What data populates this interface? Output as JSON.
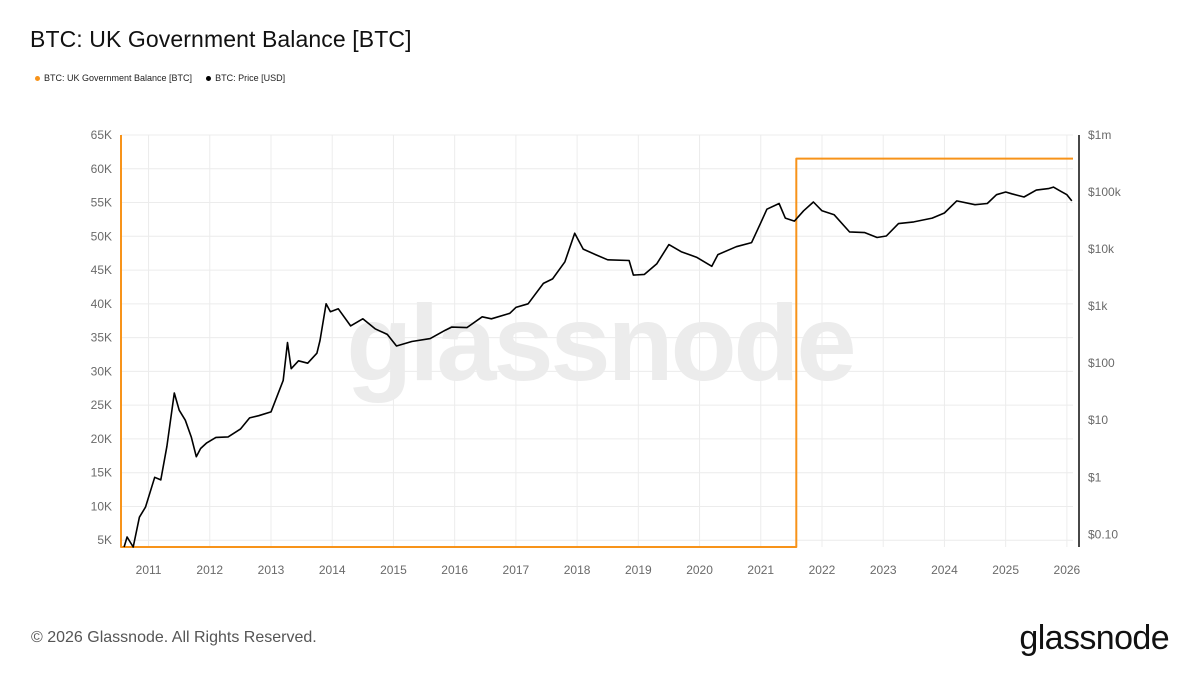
{
  "header": {
    "title": "BTC: UK Government Balance [BTC]"
  },
  "legend": [
    {
      "label": "BTC: UK Government Balance [BTC]",
      "color": "#f7931a"
    },
    {
      "label": "BTC: Price [USD]",
      "color": "#000000"
    }
  ],
  "footer": {
    "copyright": "© 2026 Glassnode. All Rights Reserved.",
    "brand": "glassnode"
  },
  "watermark": "glassnode",
  "chart_data": {
    "type": "line",
    "title": "BTC: UK Government Balance [BTC]",
    "x_ticks": [
      "2011",
      "2012",
      "2013",
      "2014",
      "2015",
      "2016",
      "2017",
      "2018",
      "2019",
      "2020",
      "2021",
      "2022",
      "2023",
      "2024",
      "2025",
      "2026"
    ],
    "x_range": [
      2010.55,
      2026.1
    ],
    "left_axis": {
      "ticks": [
        "5K",
        "10K",
        "15K",
        "20K",
        "25K",
        "30K",
        "35K",
        "40K",
        "45K",
        "50K",
        "55K",
        "60K",
        "65K"
      ],
      "tick_values": [
        5000,
        10000,
        15000,
        20000,
        25000,
        30000,
        35000,
        40000,
        45000,
        50000,
        55000,
        60000,
        65000
      ],
      "ylim": [
        4000,
        65000
      ]
    },
    "right_axis": {
      "scale": "log",
      "ticks": [
        "$0.10",
        "$1",
        "$10",
        "$100",
        "$1k",
        "$10k",
        "$100k",
        "$1m"
      ],
      "tick_values": [
        0.1,
        1,
        10,
        100,
        1000,
        10000,
        100000,
        1000000
      ],
      "ylim": [
        0.06,
        1000000
      ]
    },
    "grid": true,
    "series": [
      {
        "name": "BTC: UK Government Balance [BTC]",
        "axis": "left",
        "color": "#f7931a",
        "points": [
          [
            2010.55,
            65000
          ],
          [
            2010.55,
            4000
          ],
          [
            2021.58,
            4000
          ],
          [
            2021.58,
            6000
          ],
          [
            2021.58,
            61500
          ],
          [
            2026.1,
            61500
          ]
        ]
      },
      {
        "name": "BTC: Price [USD]",
        "axis": "right",
        "color": "#000000",
        "points": [
          [
            2010.6,
            0.06
          ],
          [
            2010.65,
            0.09
          ],
          [
            2010.75,
            0.06
          ],
          [
            2010.85,
            0.2
          ],
          [
            2010.95,
            0.3
          ],
          [
            2011.1,
            1.0
          ],
          [
            2011.2,
            0.9
          ],
          [
            2011.3,
            3.5
          ],
          [
            2011.42,
            30
          ],
          [
            2011.5,
            15
          ],
          [
            2011.6,
            10
          ],
          [
            2011.7,
            5
          ],
          [
            2011.78,
            2.3
          ],
          [
            2011.85,
            3.2
          ],
          [
            2011.95,
            4.0
          ],
          [
            2012.1,
            5.0
          ],
          [
            2012.3,
            5.1
          ],
          [
            2012.5,
            7.0
          ],
          [
            2012.65,
            11
          ],
          [
            2012.8,
            12
          ],
          [
            2013.0,
            14
          ],
          [
            2013.2,
            50
          ],
          [
            2013.27,
            230
          ],
          [
            2013.33,
            80
          ],
          [
            2013.45,
            110
          ],
          [
            2013.6,
            100
          ],
          [
            2013.75,
            150
          ],
          [
            2013.8,
            250
          ],
          [
            2013.9,
            1100
          ],
          [
            2013.97,
            800
          ],
          [
            2014.1,
            900
          ],
          [
            2014.3,
            450
          ],
          [
            2014.5,
            600
          ],
          [
            2014.7,
            400
          ],
          [
            2014.9,
            320
          ],
          [
            2015.05,
            200
          ],
          [
            2015.3,
            240
          ],
          [
            2015.6,
            270
          ],
          [
            2015.85,
            380
          ],
          [
            2015.95,
            430
          ],
          [
            2016.2,
            420
          ],
          [
            2016.45,
            650
          ],
          [
            2016.6,
            600
          ],
          [
            2016.9,
            750
          ],
          [
            2017.0,
            950
          ],
          [
            2017.2,
            1100
          ],
          [
            2017.45,
            2500
          ],
          [
            2017.6,
            3000
          ],
          [
            2017.8,
            6000
          ],
          [
            2017.96,
            19000
          ],
          [
            2018.1,
            10000
          ],
          [
            2018.3,
            8000
          ],
          [
            2018.5,
            6500
          ],
          [
            2018.85,
            6300
          ],
          [
            2018.92,
            3500
          ],
          [
            2019.1,
            3600
          ],
          [
            2019.3,
            5500
          ],
          [
            2019.5,
            12000
          ],
          [
            2019.7,
            9000
          ],
          [
            2019.95,
            7200
          ],
          [
            2020.2,
            5000
          ],
          [
            2020.3,
            8000
          ],
          [
            2020.6,
            11000
          ],
          [
            2020.85,
            13000
          ],
          [
            2021.0,
            29000
          ],
          [
            2021.1,
            50000
          ],
          [
            2021.3,
            63000
          ],
          [
            2021.4,
            35000
          ],
          [
            2021.55,
            31000
          ],
          [
            2021.7,
            47000
          ],
          [
            2021.86,
            67000
          ],
          [
            2022.0,
            47000
          ],
          [
            2022.2,
            40000
          ],
          [
            2022.45,
            20000
          ],
          [
            2022.7,
            19500
          ],
          [
            2022.9,
            16000
          ],
          [
            2023.05,
            17000
          ],
          [
            2023.25,
            28000
          ],
          [
            2023.5,
            30000
          ],
          [
            2023.8,
            35000
          ],
          [
            2024.0,
            43000
          ],
          [
            2024.2,
            70000
          ],
          [
            2024.5,
            60000
          ],
          [
            2024.7,
            63000
          ],
          [
            2024.85,
            90000
          ],
          [
            2025.0,
            100000
          ],
          [
            2025.1,
            93000
          ],
          [
            2025.3,
            82000
          ],
          [
            2025.5,
            108000
          ],
          [
            2025.7,
            115000
          ],
          [
            2025.78,
            122000
          ],
          [
            2025.9,
            103000
          ],
          [
            2026.0,
            90000
          ],
          [
            2026.08,
            70000
          ]
        ]
      }
    ]
  }
}
